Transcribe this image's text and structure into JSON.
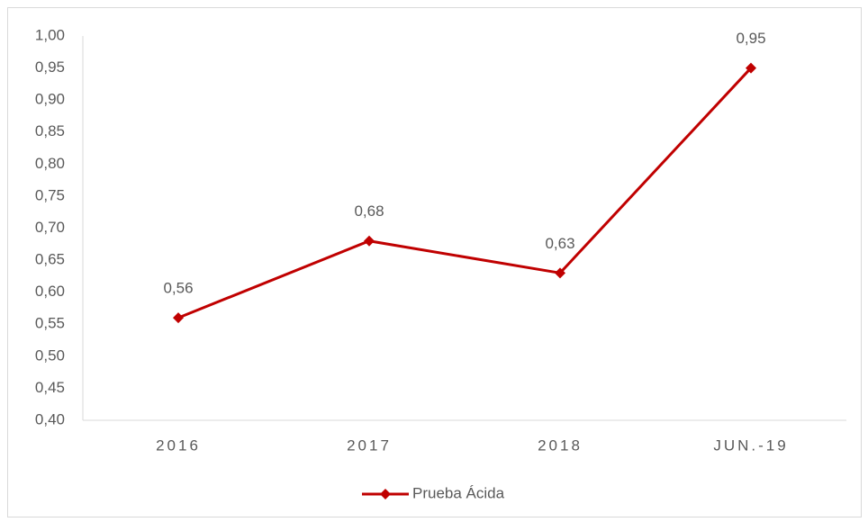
{
  "chart_data": {
    "type": "line",
    "categories": [
      "2016",
      "2017",
      "2018",
      "JUN.-19"
    ],
    "series": [
      {
        "name": "Prueba Ácida",
        "color": "#c00000",
        "values": [
          0.56,
          0.68,
          0.63,
          0.95
        ],
        "value_labels": [
          "0,56",
          "0,68",
          "0,63",
          "0,95"
        ]
      }
    ],
    "ylim": [
      0.4,
      1.0
    ],
    "yticks": [
      {
        "value": 0.4,
        "label": "0,40"
      },
      {
        "value": 0.45,
        "label": "0,45"
      },
      {
        "value": 0.5,
        "label": "0,50"
      },
      {
        "value": 0.55,
        "label": "0,55"
      },
      {
        "value": 0.6,
        "label": "0,60"
      },
      {
        "value": 0.65,
        "label": "0,65"
      },
      {
        "value": 0.7,
        "label": "0,70"
      },
      {
        "value": 0.75,
        "label": "0,75"
      },
      {
        "value": 0.8,
        "label": "0,80"
      },
      {
        "value": 0.85,
        "label": "0,85"
      },
      {
        "value": 0.9,
        "label": "0,90"
      },
      {
        "value": 0.95,
        "label": "0,95"
      },
      {
        "value": 1.0,
        "label": "1,00"
      }
    ],
    "grid": false,
    "legend": "bottom"
  }
}
